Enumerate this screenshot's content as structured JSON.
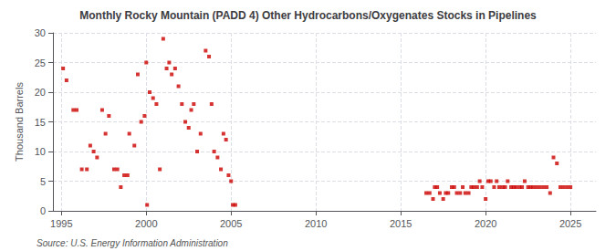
{
  "chart_data": {
    "type": "scatter",
    "title": "Monthly Rocky Mountain (PADD 4) Other Hydrocarbons/Oxygenates Stocks in Pipelines",
    "ylabel": "Thousand Barrels",
    "annotation": "Source: U.S. Energy Information Administration",
    "color": "#cc0000",
    "marker": "square",
    "grid": true,
    "xlim": [
      1994.5,
      2026.5
    ],
    "ylim": [
      0,
      30
    ],
    "xticks": [
      1995,
      2000,
      2005,
      2010,
      2015,
      2020,
      2025
    ],
    "yticks": [
      0,
      5,
      10,
      15,
      20,
      25,
      30
    ],
    "x": [
      1995.1,
      1995.3,
      1995.7,
      1995.9,
      1996.2,
      1996.5,
      1996.7,
      1996.9,
      1997.1,
      1997.4,
      1997.6,
      1997.8,
      1998.1,
      1998.3,
      1998.5,
      1998.7,
      1998.9,
      1999.0,
      1999.3,
      1999.5,
      1999.7,
      1999.9,
      2000.0,
      2000.05,
      2000.2,
      2000.4,
      2000.6,
      2000.8,
      2001.0,
      2001.2,
      2001.35,
      2001.5,
      2001.7,
      2001.9,
      2002.1,
      2002.3,
      2002.5,
      2002.65,
      2002.8,
      2003.0,
      2003.2,
      2003.5,
      2003.7,
      2003.85,
      2004.0,
      2004.2,
      2004.4,
      2004.55,
      2004.7,
      2004.85,
      2005.0,
      2005.1,
      2005.25,
      2016.5,
      2016.7,
      2016.9,
      2017.0,
      2017.15,
      2017.3,
      2017.5,
      2017.65,
      2017.8,
      2018.0,
      2018.15,
      2018.3,
      2018.5,
      2018.65,
      2018.8,
      2019.0,
      2019.15,
      2019.3,
      2019.5,
      2019.65,
      2019.8,
      2020.0,
      2020.15,
      2020.3,
      2020.5,
      2020.65,
      2020.8,
      2021.0,
      2021.15,
      2021.3,
      2021.5,
      2021.65,
      2021.8,
      2022.0,
      2022.15,
      2022.3,
      2022.5,
      2022.65,
      2022.8,
      2023.0,
      2023.2,
      2023.4,
      2023.6,
      2023.8,
      2024.0,
      2024.2,
      2024.4,
      2024.6,
      2024.8,
      2025.0
    ],
    "values": [
      24,
      22,
      17,
      17,
      7,
      7,
      11,
      10,
      9,
      17,
      13,
      16,
      7,
      7,
      4,
      6,
      6,
      13,
      11,
      23,
      15,
      16,
      25,
      1,
      20,
      19,
      18,
      7,
      29,
      24,
      25,
      23,
      24,
      21,
      18,
      15,
      14,
      17,
      18,
      10,
      13,
      27,
      26,
      18,
      10,
      9,
      7,
      13,
      12,
      6,
      5,
      1,
      1,
      3,
      3,
      2,
      4,
      4,
      3,
      2,
      3,
      3,
      4,
      4,
      3,
      3,
      4,
      3,
      3,
      4,
      4,
      4,
      5,
      4,
      2,
      5,
      5,
      4,
      5,
      4,
      4,
      4,
      5,
      4,
      4,
      4,
      4,
      4,
      5,
      4,
      4,
      4,
      4,
      4,
      4,
      4,
      3,
      9,
      8,
      4,
      4,
      4,
      4
    ]
  }
}
